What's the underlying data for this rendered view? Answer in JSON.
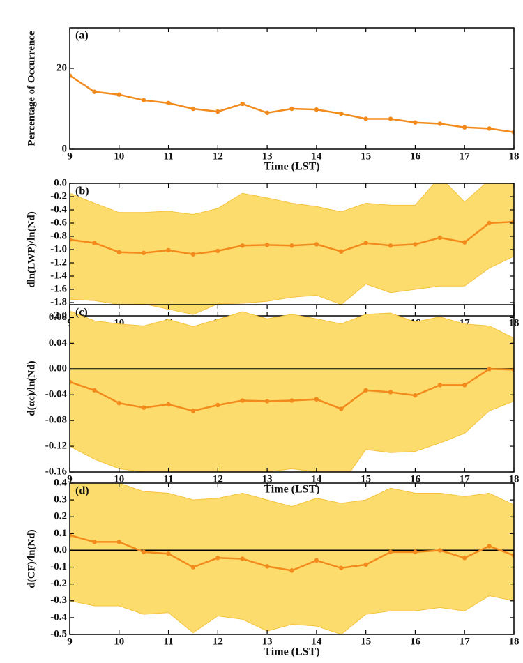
{
  "chart_data": [
    {
      "type": "line",
      "label": "(a)",
      "xlabel": "Time (LST)",
      "ylabel": "Percentage of Occurrence",
      "x": [
        9,
        9.5,
        10,
        10.5,
        11,
        11.5,
        12,
        12.5,
        13,
        13.5,
        14,
        14.5,
        15,
        15.5,
        16,
        16.5,
        17,
        17.5,
        18
      ],
      "values": [
        18.2,
        14.2,
        13.5,
        12.1,
        11.4,
        10.0,
        9.3,
        11.2,
        9.0,
        10.0,
        9.8,
        8.8,
        7.5,
        7.5,
        6.6,
        6.3,
        5.4,
        5.1,
        4.2
      ],
      "color": "#f28a1c",
      "xlim": [
        9,
        18
      ],
      "xticks": [
        9,
        10,
        11,
        12,
        13,
        14,
        15,
        16,
        17,
        18
      ],
      "ylim": [
        0,
        30
      ],
      "yticks": [
        0,
        20
      ]
    },
    {
      "type": "line",
      "label": "(b)",
      "xlabel": "Time (LST)",
      "ylabel": "dln(LWP)/ln(Nd)",
      "x": [
        9,
        9.5,
        10,
        10.5,
        11,
        11.5,
        12,
        12.5,
        13,
        13.5,
        14,
        14.5,
        15,
        15.5,
        16,
        16.5,
        17,
        17.5,
        18
      ],
      "values": [
        -0.85,
        -0.9,
        -1.04,
        -1.05,
        -1.01,
        -1.07,
        -1.02,
        -0.94,
        -0.93,
        -0.94,
        -0.92,
        -1.03,
        -0.9,
        -0.94,
        -0.92,
        -0.82,
        -0.89,
        -0.6,
        -0.58
      ],
      "upper": [
        -0.15,
        -0.3,
        -0.44,
        -0.44,
        -0.42,
        -0.47,
        -0.38,
        -0.15,
        -0.22,
        -0.3,
        -0.35,
        -0.43,
        -0.3,
        -0.33,
        -0.33,
        0.1,
        -0.28,
        0.05,
        0.1
      ],
      "lower": [
        -1.75,
        -1.77,
        -1.83,
        -1.82,
        -1.9,
        -1.98,
        -1.82,
        -1.81,
        -1.78,
        -1.72,
        -1.69,
        -1.83,
        -1.52,
        -1.65,
        -1.6,
        -1.55,
        -1.55,
        -1.28,
        -1.1
      ],
      "color": "#f28a1c",
      "band_color": "#fddc6e",
      "xlim": [
        9,
        18
      ],
      "xticks": [
        9,
        10,
        11,
        12,
        13,
        14,
        15,
        16,
        17,
        18
      ],
      "ylim": [
        -2,
        0
      ],
      "yticks": [
        {
          "value": 0,
          "label": "0.0"
        },
        -0.2,
        -0.4,
        -0.6,
        -0.8,
        {
          "value": -1,
          "label": "-1.0"
        },
        -1.2,
        -1.4,
        -1.6,
        -1.8,
        {
          "value": -2,
          "label": "-2.0"
        }
      ]
    },
    {
      "type": "line",
      "label": "(c)",
      "xlabel": "Time (LST)",
      "ylabel": "d(αc)/ln(Nd)",
      "x": [
        9,
        9.5,
        10,
        10.5,
        11,
        11.5,
        12,
        12.5,
        13,
        13.5,
        14,
        14.5,
        15,
        15.5,
        16,
        16.5,
        17,
        17.5,
        18
      ],
      "values": [
        -0.02,
        -0.033,
        -0.053,
        -0.06,
        -0.055,
        -0.065,
        -0.056,
        -0.049,
        -0.05,
        -0.049,
        -0.047,
        -0.062,
        -0.033,
        -0.036,
        -0.041,
        -0.025,
        -0.025,
        0.0,
        -0.001
      ],
      "upper": [
        0.09,
        0.075,
        0.07,
        0.067,
        0.077,
        0.066,
        0.077,
        0.089,
        0.078,
        0.085,
        0.078,
        0.07,
        0.085,
        0.087,
        0.073,
        0.081,
        0.07,
        0.067,
        0.048
      ],
      "lower": [
        -0.12,
        -0.14,
        -0.155,
        -0.16,
        -0.17,
        -0.165,
        -0.165,
        -0.16,
        -0.16,
        -0.155,
        -0.16,
        -0.18,
        -0.125,
        -0.13,
        -0.128,
        -0.115,
        -0.1,
        -0.065,
        -0.05
      ],
      "color": "#f28a1c",
      "band_color": "#fddc6e",
      "reference_line": 0,
      "xlim": [
        9,
        18
      ],
      "xticks": [
        9,
        10,
        11,
        12,
        13,
        14,
        15,
        16,
        17,
        18
      ],
      "ylim": [
        -0.16,
        0.1
      ],
      "yticks": [
        0.08,
        0.04,
        {
          "value": 0,
          "label": "0.00"
        },
        -0.04,
        -0.08,
        -0.12,
        -0.16
      ]
    },
    {
      "type": "line",
      "label": "(d)",
      "xlabel": "Time (LST)",
      "ylabel": "d(CF)/ln(Nd)",
      "x": [
        9,
        9.5,
        10,
        10.5,
        11,
        11.5,
        12,
        12.5,
        13,
        13.5,
        14,
        14.5,
        15,
        15.5,
        16,
        16.5,
        17,
        17.5,
        18
      ],
      "values": [
        0.09,
        0.05,
        0.05,
        -0.01,
        -0.02,
        -0.1,
        -0.045,
        -0.05,
        -0.095,
        -0.12,
        -0.06,
        -0.105,
        -0.085,
        -0.01,
        -0.01,
        0.0,
        -0.045,
        0.025,
        -0.03
      ],
      "upper": [
        0.42,
        0.42,
        0.4,
        0.35,
        0.34,
        0.3,
        0.31,
        0.34,
        0.3,
        0.26,
        0.31,
        0.28,
        0.3,
        0.37,
        0.34,
        0.34,
        0.32,
        0.34,
        0.27
      ],
      "lower": [
        -0.3,
        -0.33,
        -0.33,
        -0.38,
        -0.37,
        -0.49,
        -0.39,
        -0.41,
        -0.48,
        -0.44,
        -0.45,
        -0.5,
        -0.38,
        -0.36,
        -0.36,
        -0.34,
        -0.36,
        -0.27,
        -0.3
      ],
      "color": "#f28a1c",
      "band_color": "#fddc6e",
      "reference_line": 0,
      "xlim": [
        9,
        18
      ],
      "xticks": [
        9,
        10,
        11,
        12,
        13,
        14,
        15,
        16,
        17,
        18
      ],
      "ylim": [
        -0.5,
        0.4
      ],
      "yticks": [
        0.4,
        0.3,
        0.2,
        0.1,
        {
          "value": 0,
          "label": "0.0"
        },
        -0.1,
        -0.2,
        -0.3,
        -0.4,
        -0.5
      ]
    }
  ]
}
